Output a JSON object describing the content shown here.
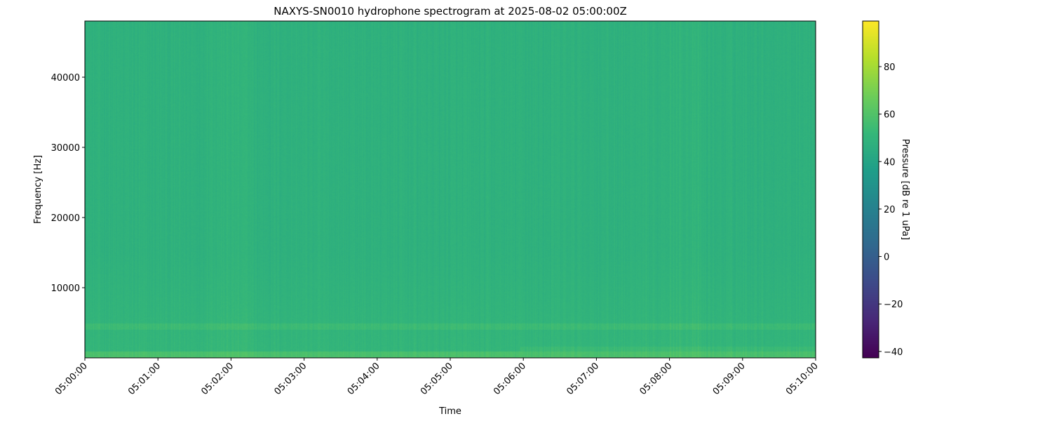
{
  "chart_data": {
    "type": "heatmap",
    "title": "NAXYS-SN0010 hydrophone spectrogram at 2025-08-02 05:00:00Z",
    "xlabel": "Time",
    "ylabel": "Frequency [Hz]",
    "x_ticks": [
      "05:00:00",
      "05:01:00",
      "05:02:00",
      "05:03:00",
      "05:04:00",
      "05:05:00",
      "05:06:00",
      "05:07:00",
      "05:08:00",
      "05:09:00",
      "05:10:00"
    ],
    "xlim": [
      "05:00:00",
      "05:10:00"
    ],
    "y_ticks": [
      10000,
      20000,
      30000,
      40000
    ],
    "ylim": [
      0,
      48000
    ],
    "colormap": "viridis",
    "colorbar": {
      "label": "Pressure [dB re 1 uPa]",
      "ticks": [
        -40,
        -20,
        0,
        20,
        40,
        60,
        80
      ],
      "range": [
        -42.7,
        99.2
      ]
    },
    "typical_levels_db": {
      "background": 48,
      "low_frequency_band_below_1000hz": 58,
      "band_4000_5000hz": 54
    },
    "grid": false
  }
}
